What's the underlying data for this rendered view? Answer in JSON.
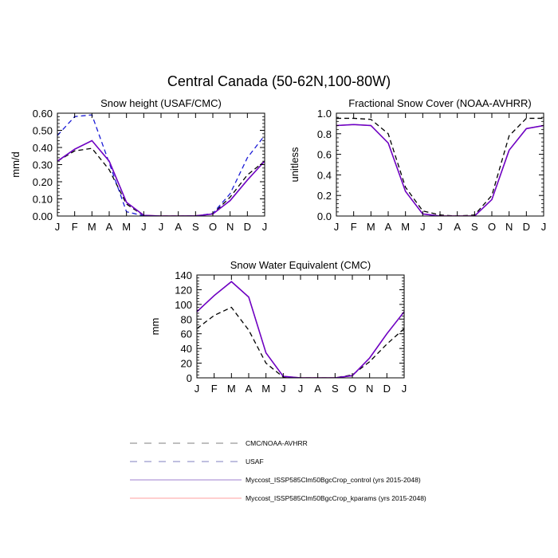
{
  "figure": {
    "title": "Central Canada (50-62N,100-80W)"
  },
  "colors": {
    "obs": "#000000",
    "usaf": "#1a1ad6",
    "control": "#6600cc",
    "kparams": "#ff6666"
  },
  "chart_data": [
    {
      "type": "line",
      "title": "Snow height (USAF/CMC)",
      "ylabel": "mm/d",
      "xlabel": "",
      "categories": [
        "J",
        "F",
        "M",
        "A",
        "M",
        "J",
        "J",
        "A",
        "S",
        "O",
        "N",
        "D",
        "J"
      ],
      "ylim": [
        0,
        0.6
      ],
      "yticks": [
        "0.00",
        "0.10",
        "0.20",
        "0.30",
        "0.40",
        "0.50",
        "0.60"
      ],
      "series": [
        {
          "name": "CMC/NOAA-AVHRR",
          "style": "dashed",
          "color": "#000000",
          "values": [
            0.32,
            0.38,
            0.395,
            0.27,
            0.07,
            0.002,
            0,
            0,
            0.001,
            0.012,
            0.11,
            0.24,
            0.32
          ]
        },
        {
          "name": "USAF",
          "style": "dashed",
          "color": "#1a1ad6",
          "values": [
            0.47,
            0.58,
            0.59,
            0.31,
            0.025,
            0.001,
            0,
            0,
            0.001,
            0.015,
            0.13,
            0.34,
            0.47
          ]
        },
        {
          "name": "Myccost_ISSP585Clm50BgcCrop_kparams (yrs 2015-2048)",
          "style": "solid",
          "color": "#ff6666",
          "values": [
            0.32,
            0.39,
            0.44,
            0.32,
            0.08,
            0.004,
            0,
            0,
            0.001,
            0.012,
            0.09,
            0.21,
            0.32
          ]
        },
        {
          "name": "Myccost_ISSP585Clm50BgcCrop_control (yrs 2015-2048)",
          "style": "solid",
          "color": "#6600cc",
          "values": [
            0.32,
            0.39,
            0.44,
            0.32,
            0.08,
            0.004,
            0,
            0,
            0.001,
            0.012,
            0.09,
            0.21,
            0.32
          ]
        }
      ]
    },
    {
      "type": "line",
      "title": "Fractional Snow Cover (NOAA-AVHRR)",
      "ylabel": "unitless",
      "xlabel": "",
      "categories": [
        "J",
        "F",
        "M",
        "A",
        "M",
        "J",
        "J",
        "A",
        "S",
        "O",
        "N",
        "D",
        "J"
      ],
      "ylim": [
        0,
        1.0
      ],
      "yticks": [
        "0.0",
        "0.2",
        "0.4",
        "0.6",
        "0.8",
        "1.0"
      ],
      "series": [
        {
          "name": "CMC/NOAA-AVHRR",
          "style": "dashed",
          "color": "#000000",
          "values": [
            0.95,
            0.95,
            0.94,
            0.8,
            0.28,
            0.05,
            0.01,
            0,
            0.01,
            0.2,
            0.78,
            0.95,
            0.95
          ]
        },
        {
          "name": "Myccost_ISSP585Clm50BgcCrop_kparams (yrs 2015-2048)",
          "style": "solid",
          "color": "#ff6666",
          "values": [
            0.88,
            0.89,
            0.88,
            0.71,
            0.24,
            0.02,
            0,
            0,
            0,
            0.16,
            0.64,
            0.85,
            0.88
          ]
        },
        {
          "name": "Myccost_ISSP585Clm50BgcCrop_control (yrs 2015-2048)",
          "style": "solid",
          "color": "#6600cc",
          "values": [
            0.88,
            0.89,
            0.88,
            0.71,
            0.24,
            0.02,
            0,
            0,
            0,
            0.16,
            0.64,
            0.85,
            0.88
          ]
        }
      ]
    },
    {
      "type": "line",
      "title": "Snow Water Equivalent (CMC)",
      "ylabel": "mm",
      "xlabel": "",
      "categories": [
        "J",
        "F",
        "M",
        "A",
        "M",
        "J",
        "J",
        "A",
        "S",
        "O",
        "N",
        "D",
        "J"
      ],
      "ylim": [
        0,
        140
      ],
      "yticks": [
        "0",
        "20",
        "40",
        "60",
        "80",
        "100",
        "120",
        "140"
      ],
      "series": [
        {
          "name": "CMC/NOAA-AVHRR",
          "style": "dashed",
          "color": "#000000",
          "values": [
            67,
            85,
            96,
            65,
            20,
            1,
            0,
            0,
            0,
            4,
            22,
            46,
            67
          ]
        },
        {
          "name": "Myccost_ISSP585Clm50BgcCrop_kparams (yrs 2015-2048)",
          "style": "solid",
          "color": "#ff6666",
          "values": [
            90,
            112,
            131,
            110,
            34,
            2,
            0,
            0,
            0,
            3,
            27,
            60,
            90
          ]
        },
        {
          "name": "Myccost_ISSP585Clm50BgcCrop_control (yrs 2015-2048)",
          "style": "solid",
          "color": "#6600cc",
          "values": [
            90,
            112,
            131,
            110,
            34,
            2,
            0,
            0,
            0,
            3,
            27,
            60,
            90
          ]
        }
      ]
    }
  ],
  "legend": {
    "items": [
      {
        "label": "CMC/NOAA-AVHRR",
        "style": "dashed",
        "color": "#7f7f7f"
      },
      {
        "label": "USAF",
        "style": "dashed",
        "color": "#7f7fbf"
      },
      {
        "label": "Myccost_ISSP585Clm50BgcCrop_control (yrs 2015-2048)",
        "style": "solid",
        "color": "#9f7fcf"
      },
      {
        "label": "Myccost_ISSP585Clm50BgcCrop_kparams (yrs 2015-2048)",
        "style": "solid",
        "color": "#ff9f9f"
      }
    ]
  }
}
